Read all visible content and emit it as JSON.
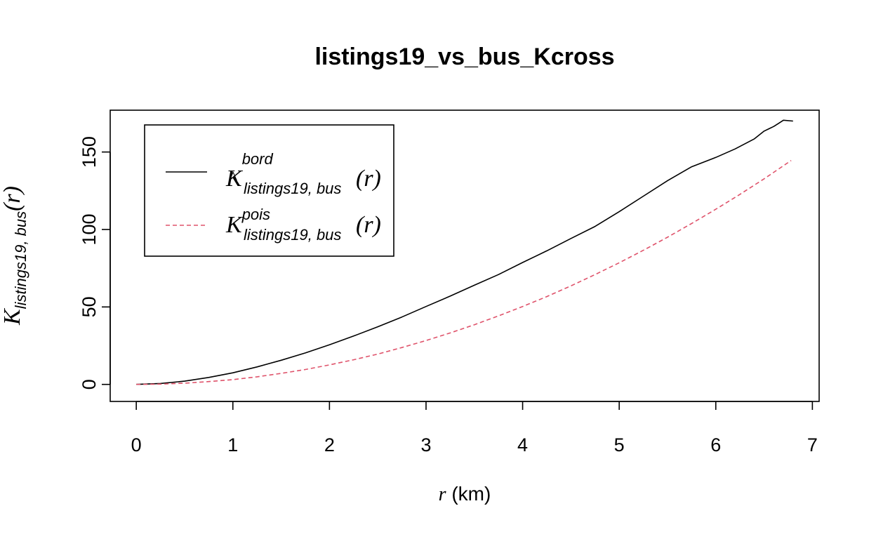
{
  "chart_data": {
    "type": "line",
    "title": "listings19_vs_bus_Kcross",
    "xlabel": {
      "var": "r",
      "unit": " (km)"
    },
    "ylabel": {
      "main": "K",
      "sub": "listings19, bus",
      "arg": "(r)"
    },
    "xlim": [
      -0.27,
      7.07
    ],
    "ylim": [
      -11.0,
      177.0
    ],
    "x_ticks": [
      "0",
      "1",
      "2",
      "3",
      "4",
      "5",
      "6",
      "7"
    ],
    "y_ticks": [
      "0",
      "50",
      "100",
      "150"
    ],
    "grid": false,
    "legend_position": "top-left",
    "series": [
      {
        "name": "bord",
        "legend": {
          "main": "K",
          "sup": "bord",
          "sub": "listings19, bus",
          "arg": "(r)",
          "hat": "^"
        },
        "color": "#000000",
        "dash": "solid",
        "x": [
          0,
          0.25,
          0.5,
          0.75,
          1.0,
          1.25,
          1.5,
          1.75,
          2.0,
          2.25,
          2.5,
          2.75,
          3.0,
          3.25,
          3.5,
          3.75,
          4.0,
          4.25,
          4.5,
          4.75,
          5.0,
          5.25,
          5.5,
          5.75,
          6.0,
          6.2,
          6.4,
          6.5,
          6.55,
          6.6,
          6.65,
          6.7,
          6.8
        ],
        "y": [
          0,
          0.6,
          2.1,
          4.5,
          7.5,
          11.3,
          15.6,
          20.3,
          25.6,
          31.2,
          37.2,
          43.5,
          50.3,
          57.0,
          64.0,
          70.9,
          78.7,
          86.2,
          94.2,
          102.0,
          111.5,
          121.5,
          131.5,
          140.5,
          146.5,
          152.0,
          158.5,
          163.5,
          165.0,
          166.5,
          168.5,
          170.5,
          170.0
        ]
      },
      {
        "name": "pois",
        "legend": {
          "main": "K",
          "sup": "pois",
          "sub": "listings19, bus",
          "arg": "(r)"
        },
        "color": "#DF536B",
        "dash": "dashed",
        "x": [
          0,
          0.25,
          0.5,
          0.75,
          1.0,
          1.25,
          1.5,
          1.75,
          2.0,
          2.25,
          2.5,
          2.75,
          3.0,
          3.25,
          3.5,
          3.75,
          4.0,
          4.25,
          4.5,
          4.75,
          5.0,
          5.25,
          5.5,
          5.75,
          6.0,
          6.25,
          6.5,
          6.78
        ],
        "y": [
          0,
          0.2,
          0.8,
          1.8,
          3.1,
          4.9,
          7.1,
          9.6,
          12.6,
          15.9,
          19.6,
          23.8,
          28.3,
          33.2,
          38.5,
          44.2,
          50.3,
          56.7,
          63.6,
          70.9,
          78.5,
          86.6,
          95.0,
          103.9,
          113.1,
          122.7,
          132.7,
          144.5
        ]
      }
    ]
  }
}
